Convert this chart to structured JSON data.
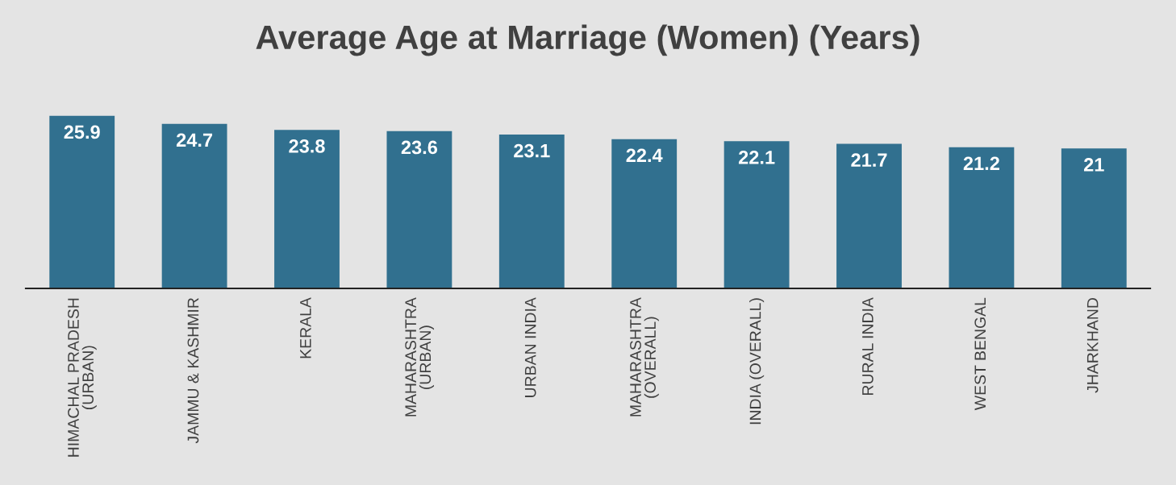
{
  "chart_data": {
    "type": "bar",
    "title": "Average Age at Marriage (Women) (Years)",
    "categories": [
      "HIMACHAL PRADESH\n(URBAN)",
      "JAMMU & KASHMIR",
      "KERALA",
      "MAHARASHTRA\n(URBAN)",
      "URBAN INDIA",
      "MAHARASHTRA\n(OVERALL)",
      "INDIA (OVERALL)",
      "RURAL INDIA",
      "WEST BENGAL",
      "JHARKHAND"
    ],
    "values": [
      25.9,
      24.7,
      23.8,
      23.6,
      23.1,
      22.4,
      22.1,
      21.7,
      21.2,
      21
    ],
    "color": "#31708f",
    "data_labels": true,
    "grid": false,
    "legend": false
  }
}
